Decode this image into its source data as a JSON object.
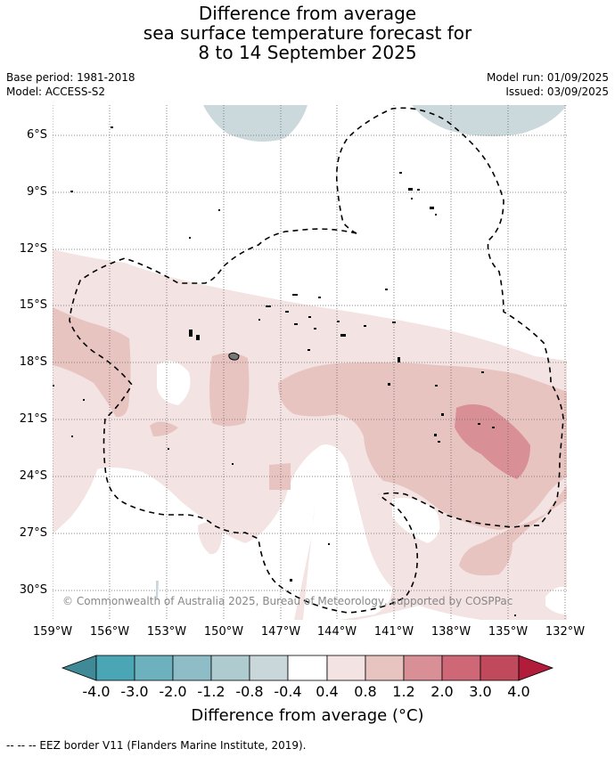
{
  "title_lines": [
    "Difference from average",
    "sea surface temperature forecast for",
    "8 to 14 September 2025"
  ],
  "meta": {
    "base_period": "Base period: 1981-2018",
    "model": "Model: ACCESS-S2",
    "model_run": "Model run: 01/09/2025",
    "issued": "Issued: 03/09/2025"
  },
  "lat_labels": [
    "6°S",
    "9°S",
    "12°S",
    "15°S",
    "18°S",
    "21°S",
    "24°S",
    "27°S",
    "30°S"
  ],
  "lon_labels": [
    "159°W",
    "156°W",
    "153°W",
    "150°W",
    "147°W",
    "144°W",
    "141°W",
    "138°W",
    "135°W",
    "132°W"
  ],
  "copyright": "© Commonwealth of Australia 2025, Bureau of Meteorology, supported by COSPPac",
  "colorbar": {
    "labels": [
      "-4.0",
      "-3.0",
      "-2.0",
      "-1.2",
      "-0.8",
      "-0.4",
      "0.4",
      "0.8",
      "1.2",
      "2.0",
      "3.0",
      "4.0"
    ],
    "colors": [
      "#3f8a96",
      "#4aa5b4",
      "#6db0be",
      "#8fbdc7",
      "#aecbd0",
      "#c9d7da",
      "#ffffff",
      "#f3e3e2",
      "#e8c4c1",
      "#d98f96",
      "#cf6876",
      "#c04a5c",
      "#b01c3a"
    ],
    "title": "Difference from average (°C)"
  },
  "footer": "--  --  -- EEZ border V11 (Flanders Marine Institute, 2019).",
  "colors": {
    "cool_anomaly": "#c9d7da",
    "warm_light": "#f3e3e2",
    "warm_medium": "#e8c4c1",
    "warm_strong": "#d98f96"
  }
}
